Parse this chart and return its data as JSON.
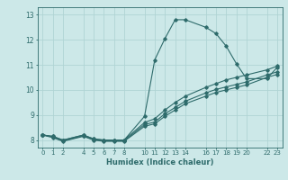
{
  "xlabel": "Humidex (Indice chaleur)",
  "bg_color": "#cce8e8",
  "grid_color": "#b0d4d4",
  "line_color": "#2e6b6b",
  "xlim": [
    -0.5,
    23.5
  ],
  "ylim": [
    7.7,
    13.3
  ],
  "xticks": [
    0,
    1,
    2,
    4,
    5,
    6,
    7,
    8,
    10,
    11,
    12,
    13,
    14,
    16,
    17,
    18,
    19,
    20,
    22,
    23
  ],
  "yticks": [
    8,
    9,
    10,
    11,
    12,
    13
  ],
  "line1_x": [
    0,
    1,
    2,
    4,
    5,
    6,
    7,
    8,
    10,
    11,
    12,
    13,
    14,
    16,
    17,
    18,
    19,
    20,
    22,
    23
  ],
  "line1_y": [
    8.2,
    8.15,
    8.0,
    8.2,
    8.05,
    8.0,
    8.0,
    8.0,
    8.95,
    11.2,
    12.05,
    12.8,
    12.8,
    12.5,
    12.25,
    11.75,
    11.05,
    10.45,
    10.45,
    10.9
  ],
  "line2_x": [
    0,
    1,
    2,
    4,
    5,
    6,
    7,
    8,
    10,
    11,
    12,
    13,
    14,
    16,
    17,
    18,
    19,
    20,
    22,
    23
  ],
  "line2_y": [
    8.2,
    8.15,
    8.0,
    8.2,
    8.05,
    8.0,
    8.0,
    8.0,
    8.7,
    8.85,
    9.2,
    9.5,
    9.75,
    10.1,
    10.25,
    10.4,
    10.5,
    10.6,
    10.8,
    10.95
  ],
  "line3_x": [
    0,
    1,
    2,
    4,
    5,
    6,
    7,
    8,
    10,
    11,
    12,
    13,
    14,
    16,
    17,
    18,
    19,
    20,
    22,
    23
  ],
  "line3_y": [
    8.2,
    8.1,
    7.95,
    8.15,
    8.0,
    7.95,
    7.95,
    7.95,
    8.55,
    8.65,
    8.95,
    9.2,
    9.45,
    9.75,
    9.9,
    10.0,
    10.1,
    10.2,
    10.5,
    10.62
  ],
  "line4_x": [
    0,
    1,
    2,
    4,
    5,
    6,
    7,
    8,
    10,
    11,
    12,
    13,
    14,
    16,
    17,
    18,
    19,
    20,
    22,
    23
  ],
  "line4_y": [
    8.22,
    8.12,
    7.97,
    8.17,
    8.02,
    7.97,
    7.97,
    7.97,
    8.62,
    8.72,
    9.05,
    9.3,
    9.55,
    9.88,
    10.02,
    10.12,
    10.22,
    10.32,
    10.6,
    10.72
  ]
}
